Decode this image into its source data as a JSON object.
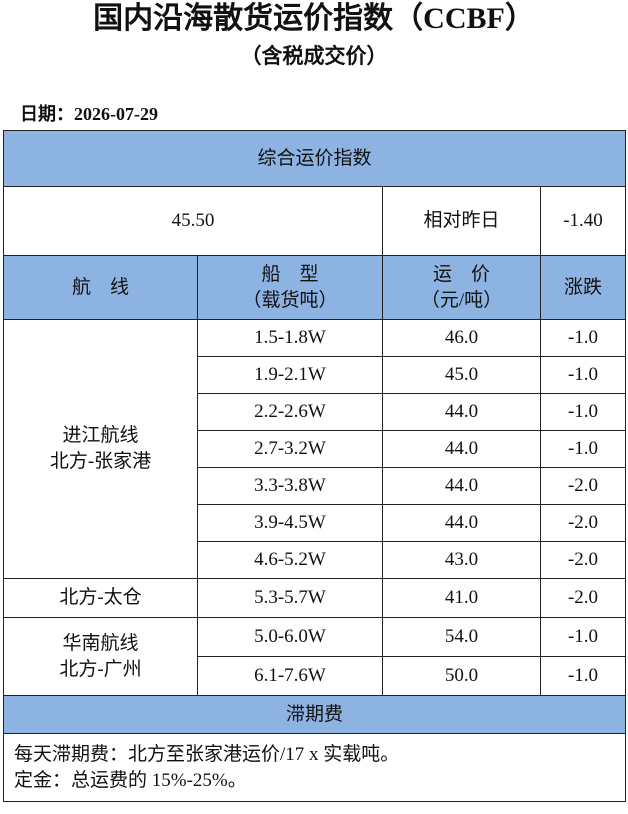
{
  "header": {
    "title": "国内沿海散货运价指数（CCBF）",
    "subtitle": "（含税成交价）",
    "date": "日期：2026-07-29"
  },
  "table": {
    "index_title": "综合运价指数",
    "index_value": "45.50",
    "compare_label": "相对昨日",
    "compare_value": "-1.40",
    "columns": [
      [
        "航　线"
      ],
      [
        "船　型",
        "（载货吨）"
      ],
      [
        "运　价",
        "（元/吨）"
      ],
      [
        "涨跌"
      ]
    ],
    "groups": [
      {
        "route": [
          "进江航线",
          "北方-张家港"
        ],
        "rows": [
          [
            "1.5-1.8W",
            "46.0",
            "-1.0"
          ],
          [
            "1.9-2.1W",
            "45.0",
            "-1.0"
          ],
          [
            "2.2-2.6W",
            "44.0",
            "-1.0"
          ],
          [
            "2.7-3.2W",
            "44.0",
            "-1.0"
          ],
          [
            "3.3-3.8W",
            "44.0",
            "-2.0"
          ],
          [
            "3.9-4.5W",
            "44.0",
            "-2.0"
          ],
          [
            "4.6-5.2W",
            "43.0",
            "-2.0"
          ]
        ]
      },
      {
        "route": [
          "北方-太仓"
        ],
        "rows": [
          [
            "5.3-5.7W",
            "41.0",
            "-2.0"
          ]
        ]
      },
      {
        "route": [
          "华南航线",
          "北方-广州"
        ],
        "rows": [
          [
            "5.0-6.0W",
            "54.0",
            "-1.0"
          ],
          [
            "6.1-7.6W",
            "50.0",
            "-1.0"
          ]
        ]
      }
    ]
  },
  "footer": {
    "title": "滞期费",
    "notes": [
      "每天滞期费：北方至张家港运价/17 x 实载吨。",
      "定金：总运费的 15%-25%。"
    ]
  }
}
